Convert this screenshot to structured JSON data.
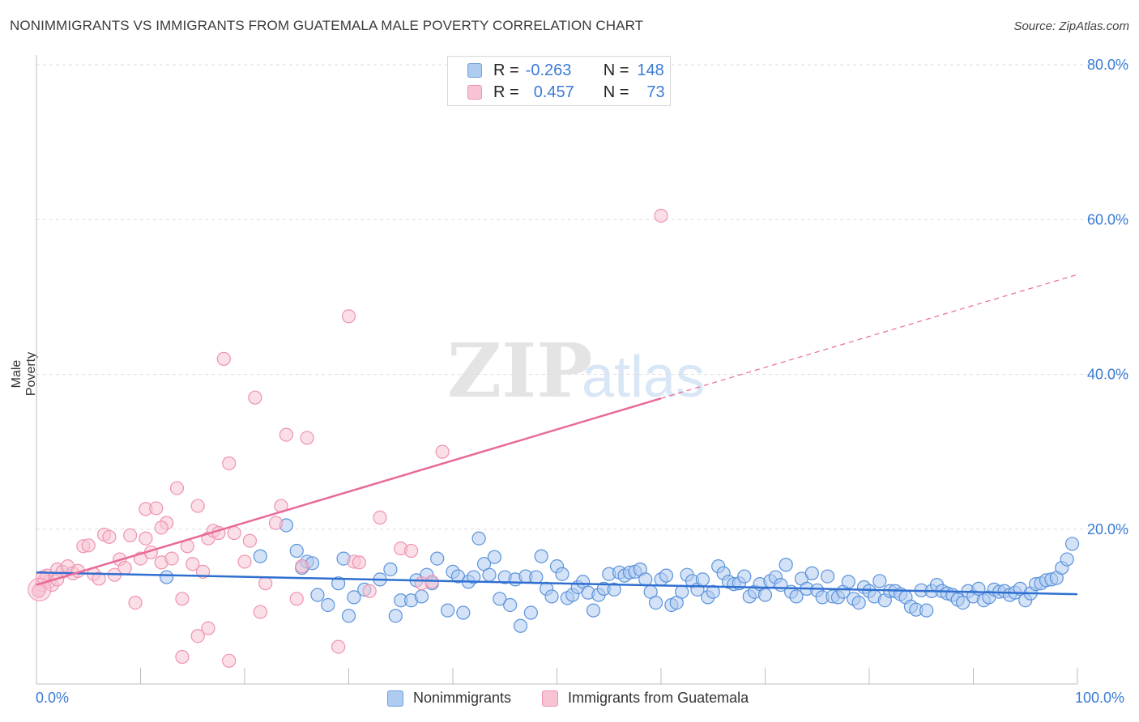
{
  "title": "NONIMMIGRANTS VS IMMIGRANTS FROM GUATEMALA MALE POVERTY CORRELATION CHART",
  "source": "Source: ZipAtlas.com",
  "watermark": {
    "zip": "ZIP",
    "atlas": "atlas"
  },
  "legend_top": {
    "rows": [
      {
        "r_label": "R =",
        "r_value": "-0.263",
        "n_label": "N =",
        "n_value": "148",
        "fill": "#aecbf0",
        "stroke": "#6e9fe0"
      },
      {
        "r_label": "R =",
        "r_value": "0.457",
        "n_label": "N =",
        "n_value": "73",
        "fill": "#f8c4d4",
        "stroke": "#ee93b0"
      }
    ]
  },
  "chart_data": {
    "type": "scatter",
    "title": "NONIMMIGRANTS VS IMMIGRANTS FROM GUATEMALA MALE POVERTY CORRELATION CHART",
    "xlabel": "",
    "ylabel": "Male Poverty",
    "xlim": [
      0,
      100
    ],
    "ylim": [
      0,
      80
    ],
    "x_tick_labels": [
      "0.0%",
      "100.0%"
    ],
    "y_ticks": [
      20,
      40,
      60,
      80
    ],
    "y_tick_labels": [
      "20.0%",
      "40.0%",
      "60.0%",
      "80.0%"
    ],
    "grid": true,
    "series": [
      {
        "name": "Nonimmigrants",
        "color": "#5b93dc",
        "fill": "#aecbf0",
        "trend": {
          "x0": 0,
          "y0": 14.4,
          "x1": 100,
          "y1": 11.6,
          "color": "#2f6fd0"
        },
        "points": [
          [
            12.5,
            13.8
          ],
          [
            21.5,
            16.5
          ],
          [
            24,
            20.5
          ],
          [
            25,
            17.2
          ],
          [
            25.5,
            15.0
          ],
          [
            26,
            15.8
          ],
          [
            26.5,
            15.6
          ],
          [
            27,
            11.5
          ],
          [
            28,
            10.2
          ],
          [
            29,
            13.0
          ],
          [
            29.5,
            16.2
          ],
          [
            30,
            8.8
          ],
          [
            30.5,
            11.2
          ],
          [
            31.5,
            12.2
          ],
          [
            33,
            13.5
          ],
          [
            34,
            14.8
          ],
          [
            34.5,
            8.8
          ],
          [
            35,
            10.8
          ],
          [
            36,
            10.8
          ],
          [
            36.5,
            13.4
          ],
          [
            37,
            11.3
          ],
          [
            37.5,
            14.1
          ],
          [
            38,
            13.0
          ],
          [
            38.5,
            16.2
          ],
          [
            39.5,
            9.5
          ],
          [
            40,
            14.5
          ],
          [
            40.5,
            13.9
          ],
          [
            41,
            9.2
          ],
          [
            41.5,
            13.2
          ],
          [
            42,
            13.8
          ],
          [
            42.5,
            18.8
          ],
          [
            43,
            15.5
          ],
          [
            43.5,
            14.1
          ],
          [
            44,
            16.4
          ],
          [
            44.5,
            11.0
          ],
          [
            45,
            13.8
          ],
          [
            45.5,
            10.2
          ],
          [
            46,
            13.5
          ],
          [
            46.5,
            7.5
          ],
          [
            47,
            13.9
          ],
          [
            47.5,
            9.2
          ],
          [
            48,
            13.8
          ],
          [
            48.5,
            16.5
          ],
          [
            49,
            12.3
          ],
          [
            49.5,
            11.3
          ],
          [
            50,
            15.2
          ],
          [
            50.5,
            14.2
          ],
          [
            51,
            11.1
          ],
          [
            51.5,
            11.5
          ],
          [
            52,
            12.5
          ],
          [
            52.5,
            13.2
          ],
          [
            53,
            11.8
          ],
          [
            53.5,
            9.5
          ],
          [
            54,
            11.5
          ],
          [
            54.5,
            12.3
          ],
          [
            55,
            14.2
          ],
          [
            55.5,
            12.2
          ],
          [
            56,
            14.4
          ],
          [
            56.5,
            14.0
          ],
          [
            57,
            14.4
          ],
          [
            57.5,
            14.5
          ],
          [
            58,
            14.8
          ],
          [
            58.5,
            13.5
          ],
          [
            59,
            11.9
          ],
          [
            59.5,
            10.5
          ],
          [
            60,
            13.5
          ],
          [
            60.5,
            14.0
          ],
          [
            61,
            10.2
          ],
          [
            61.5,
            10.5
          ],
          [
            62,
            11.9
          ],
          [
            62.5,
            14.1
          ],
          [
            63,
            13.3
          ],
          [
            63.5,
            12.2
          ],
          [
            64,
            13.5
          ],
          [
            64.5,
            11.2
          ],
          [
            65,
            11.9
          ],
          [
            65.5,
            15.2
          ],
          [
            66,
            14.3
          ],
          [
            66.5,
            13.2
          ],
          [
            67,
            12.9
          ],
          [
            67.5,
            13.0
          ],
          [
            68,
            13.9
          ],
          [
            68.5,
            11.3
          ],
          [
            69,
            11.9
          ],
          [
            69.5,
            12.9
          ],
          [
            70,
            11.5
          ],
          [
            70.5,
            13.3
          ],
          [
            71,
            13.8
          ],
          [
            71.5,
            12.8
          ],
          [
            72,
            15.4
          ],
          [
            72.5,
            11.9
          ],
          [
            73,
            11.3
          ],
          [
            73.5,
            13.6
          ],
          [
            74,
            12.3
          ],
          [
            74.5,
            14.3
          ],
          [
            75,
            12.1
          ],
          [
            75.5,
            11.2
          ],
          [
            76,
            13.9
          ],
          [
            76.5,
            11.3
          ],
          [
            77,
            11.2
          ],
          [
            77.5,
            11.9
          ],
          [
            78,
            13.2
          ],
          [
            78.5,
            11.0
          ],
          [
            79,
            10.5
          ],
          [
            79.5,
            12.5
          ],
          [
            80,
            12.0
          ],
          [
            80.5,
            11.3
          ],
          [
            81,
            13.3
          ],
          [
            81.5,
            10.8
          ],
          [
            82,
            12.0
          ],
          [
            82.5,
            12.0
          ],
          [
            83,
            11.6
          ],
          [
            83.5,
            11.2
          ],
          [
            84,
            10.0
          ],
          [
            84.5,
            9.6
          ],
          [
            85,
            12.1
          ],
          [
            85.5,
            9.5
          ],
          [
            86,
            12.0
          ],
          [
            86.5,
            12.8
          ],
          [
            87,
            12.0
          ],
          [
            87.5,
            11.7
          ],
          [
            88,
            11.5
          ],
          [
            88.5,
            10.9
          ],
          [
            89,
            10.5
          ],
          [
            89.5,
            12.0
          ],
          [
            90,
            11.3
          ],
          [
            90.5,
            12.3
          ],
          [
            91,
            10.8
          ],
          [
            91.5,
            11.2
          ],
          [
            92,
            12.2
          ],
          [
            92.5,
            11.9
          ],
          [
            93,
            12.0
          ],
          [
            93.5,
            11.5
          ],
          [
            94,
            11.8
          ],
          [
            94.5,
            12.3
          ],
          [
            95,
            10.8
          ],
          [
            95.5,
            11.7
          ],
          [
            96,
            12.9
          ],
          [
            96.5,
            13.0
          ],
          [
            97,
            13.4
          ],
          [
            97.5,
            13.5
          ],
          [
            98,
            13.7
          ],
          [
            98.5,
            15.0
          ],
          [
            99,
            16.1
          ],
          [
            99.5,
            18.1
          ]
        ]
      },
      {
        "name": "Immigrants from Guatemala",
        "color": "#ee93b0",
        "fill": "#f8c4d4",
        "trend": {
          "x0": 0,
          "y0": 12.8,
          "x1": 60,
          "y1": 36.9,
          "x_dash_end": 100,
          "y_dash_end": 52.9,
          "color": "#e8699a"
        },
        "points": [
          [
            0.3,
            12.2
          ],
          [
            0.5,
            12.8
          ],
          [
            0.8,
            13.5
          ],
          [
            1.0,
            14.0
          ],
          [
            1.2,
            13.2
          ],
          [
            1.5,
            12.8
          ],
          [
            2.0,
            14.8
          ],
          [
            2.5,
            14.5
          ],
          [
            3,
            15.2
          ],
          [
            3.5,
            14.3
          ],
          [
            4,
            14.6
          ],
          [
            4.5,
            17.8
          ],
          [
            5,
            17.9
          ],
          [
            5.5,
            14.2
          ],
          [
            6,
            13.6
          ],
          [
            6.5,
            19.3
          ],
          [
            7,
            19.0
          ],
          [
            7.5,
            14.1
          ],
          [
            8,
            16.1
          ],
          [
            8.5,
            15.0
          ],
          [
            9,
            19.2
          ],
          [
            9.5,
            10.5
          ],
          [
            10,
            16.2
          ],
          [
            10.5,
            22.6
          ],
          [
            11,
            17.0
          ],
          [
            11.5,
            22.7
          ],
          [
            12,
            15.7
          ],
          [
            12.5,
            20.8
          ],
          [
            13,
            16.2
          ],
          [
            13.5,
            25.3
          ],
          [
            14,
            11.0
          ],
          [
            14.5,
            17.8
          ],
          [
            15,
            15.5
          ],
          [
            15.5,
            23.0
          ],
          [
            16,
            14.5
          ],
          [
            16.5,
            18.8
          ],
          [
            17,
            19.8
          ],
          [
            17.5,
            19.5
          ],
          [
            18,
            42.0
          ],
          [
            18.5,
            28.5
          ],
          [
            19,
            19.5
          ],
          [
            20,
            15.8
          ],
          [
            20.5,
            18.5
          ],
          [
            21,
            37.0
          ],
          [
            21.5,
            9.3
          ],
          [
            22,
            13.0
          ],
          [
            23,
            20.8
          ],
          [
            23.5,
            23.0
          ],
          [
            24,
            32.2
          ],
          [
            25,
            11.0
          ],
          [
            25.5,
            15.2
          ],
          [
            26,
            31.8
          ],
          [
            29,
            4.8
          ],
          [
            30,
            47.5
          ],
          [
            30.5,
            15.8
          ],
          [
            31,
            15.7
          ],
          [
            32,
            12.0
          ],
          [
            33,
            21.5
          ],
          [
            35,
            17.5
          ],
          [
            36,
            17.2
          ],
          [
            37,
            13.0
          ],
          [
            38,
            13.2
          ],
          [
            39,
            30.0
          ],
          [
            60,
            60.5
          ],
          [
            15.5,
            6.2
          ],
          [
            16.5,
            7.2
          ],
          [
            14,
            3.5
          ],
          [
            18.5,
            3.0
          ],
          [
            10.5,
            18.8
          ],
          [
            12,
            20.2
          ],
          [
            2,
            13.5
          ],
          [
            0.2,
            12.0
          ],
          [
            0.6,
            13.8
          ]
        ]
      }
    ]
  },
  "bottom_legend": [
    {
      "label": "Nonimmigrants",
      "fill": "#aecbf0",
      "stroke": "#6e9fe0"
    },
    {
      "label": "Immigrants from Guatemala",
      "fill": "#f8c4d4",
      "stroke": "#ee93b0"
    }
  ]
}
